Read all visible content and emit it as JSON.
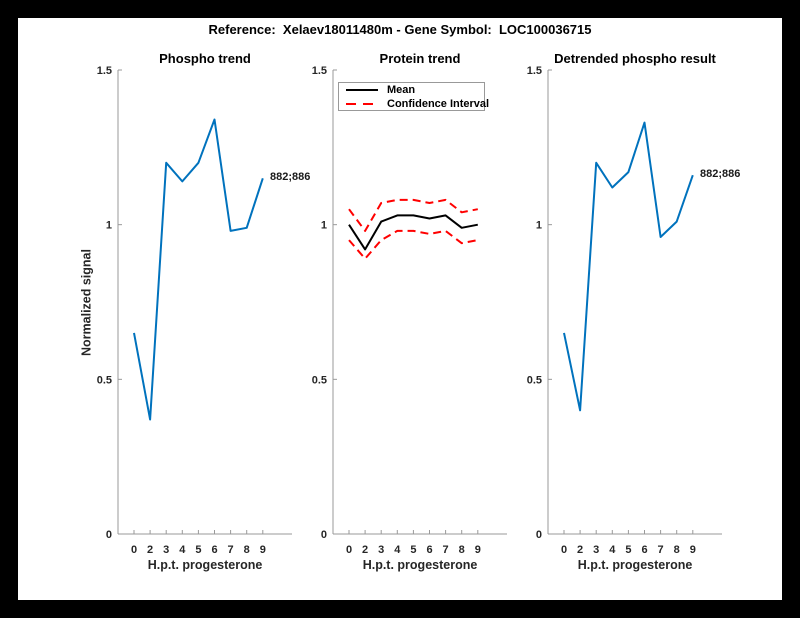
{
  "figure": {
    "title": "Reference:  Xelaev18011480m - Gene Symbol:  LOC100036715",
    "background_color": "#000000",
    "paper_color": "#ffffff"
  },
  "colors": {
    "line_blue": "#0072BD",
    "mean_black": "#000000",
    "ci_red": "#ff0000",
    "axis_gray": "#999999",
    "tick_text": "#262626"
  },
  "axis": {
    "x_label": "H.p.t. progesterone",
    "y_label": "Normalized signal",
    "x_tick_labels": [
      "0",
      "2",
      "3",
      "4",
      "5",
      "6",
      "7",
      "8",
      "9"
    ],
    "y_ticks": [
      {
        "label": "0",
        "value": 0
      },
      {
        "label": "0.5",
        "value": 0.5
      },
      {
        "label": "1",
        "value": 1
      },
      {
        "label": "1.5",
        "value": 1.5
      }
    ],
    "ylim": [
      0,
      1.5
    ],
    "grid": "off"
  },
  "chart_data": [
    {
      "type": "line",
      "title": "Phospho trend",
      "xlabel": "H.p.t. progesterone",
      "ylabel": "Normalized signal",
      "x": [
        "0",
        "2",
        "3",
        "4",
        "5",
        "6",
        "7",
        "8",
        "9"
      ],
      "ylim": [
        0,
        1.5
      ],
      "annotation": "882;886",
      "series": [
        {
          "name": "phospho-signal",
          "color": "#0072BD",
          "style": "solid",
          "width": 2,
          "values": [
            0.65,
            0.37,
            1.2,
            1.14,
            1.2,
            1.34,
            0.98,
            0.99,
            1.15
          ]
        }
      ]
    },
    {
      "type": "line",
      "title": "Protein trend",
      "xlabel": "H.p.t. progesterone",
      "x": [
        "0",
        "2",
        "3",
        "4",
        "5",
        "6",
        "7",
        "8",
        "9"
      ],
      "ylim": [
        0,
        1.5
      ],
      "legend": {
        "position": "top-left-inside",
        "items": [
          {
            "label": "Mean",
            "color": "#000000",
            "style": "solid"
          },
          {
            "label": "Confidence Interval",
            "color": "#ff0000",
            "style": "dashed"
          }
        ]
      },
      "series": [
        {
          "name": "ci-upper",
          "color": "#ff0000",
          "style": "dashed",
          "width": 2,
          "values": [
            1.05,
            0.98,
            1.07,
            1.08,
            1.08,
            1.07,
            1.08,
            1.04,
            1.05
          ]
        },
        {
          "name": "ci-lower",
          "color": "#ff0000",
          "style": "dashed",
          "width": 2,
          "values": [
            0.95,
            0.89,
            0.95,
            0.98,
            0.98,
            0.97,
            0.98,
            0.94,
            0.95
          ]
        },
        {
          "name": "mean",
          "color": "#000000",
          "style": "solid",
          "width": 2,
          "values": [
            1.0,
            0.92,
            1.01,
            1.03,
            1.03,
            1.02,
            1.03,
            0.99,
            1.0
          ]
        }
      ]
    },
    {
      "type": "line",
      "title": "Detrended phospho result",
      "xlabel": "H.p.t. progesterone",
      "x": [
        "0",
        "2",
        "3",
        "4",
        "5",
        "6",
        "7",
        "8",
        "9"
      ],
      "ylim": [
        0,
        1.5
      ],
      "annotation": "882;886",
      "series": [
        {
          "name": "detrended-phospho-signal",
          "color": "#0072BD",
          "style": "solid",
          "width": 2,
          "values": [
            0.65,
            0.4,
            1.2,
            1.12,
            1.17,
            1.33,
            0.96,
            1.01,
            1.16
          ]
        }
      ]
    }
  ]
}
